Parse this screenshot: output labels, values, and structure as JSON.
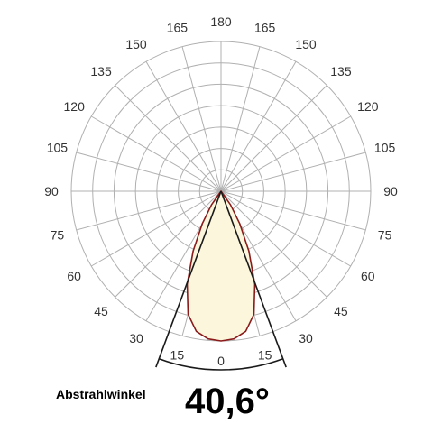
{
  "chart_data": {
    "type": "polar",
    "angle_labels": {
      "left": [
        "180",
        "165",
        "150",
        "135",
        "120",
        "105",
        "90",
        "75",
        "60",
        "45",
        "30",
        "15",
        "0"
      ],
      "right": [
        "165",
        "150",
        "135",
        "120",
        "105",
        "90",
        "75",
        "60",
        "45",
        "30",
        "15"
      ]
    },
    "angle_step_deg": 15,
    "radial_rings": 7,
    "beam_angle_deg": 40.6,
    "beam_angle_label": "Abstrahlwinkel",
    "beam_angle_text": "40,6°",
    "distribution": {
      "angles_deg": [
        0,
        5,
        10,
        15,
        20,
        25,
        30,
        35,
        40
      ],
      "relative_intensity": [
        1.0,
        0.99,
        0.95,
        0.85,
        0.66,
        0.44,
        0.25,
        0.11,
        0.0
      ]
    },
    "colors": {
      "grid": "#b0b0b0",
      "curve_stroke": "#8b1a1a",
      "curve_fill": "#fbf6dc",
      "beam_lines": "#1a1a1a"
    }
  }
}
